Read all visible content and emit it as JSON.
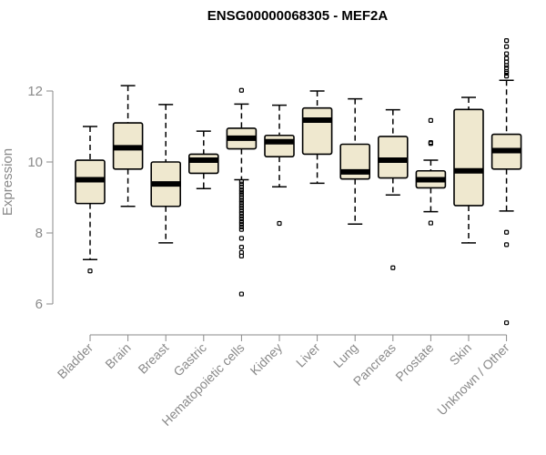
{
  "chart_data": {
    "type": "boxplot",
    "title": "ENSG00000068305 - MEF2A",
    "xlabel": "",
    "ylabel": "Expression",
    "ylim": [
      5.3,
      13.6
    ],
    "yticks": [
      6,
      8,
      10,
      12
    ],
    "box_fill": "#efe8cf",
    "grid": false,
    "legend": "none",
    "categories": [
      "Bladder",
      "Brain",
      "Breast",
      "Gastric",
      "Hematopoietic cells",
      "Kidney",
      "Liver",
      "Lung",
      "Pancreas",
      "Prostate",
      "Skin",
      "Unknown / Other"
    ],
    "boxes": [
      {
        "low": 7.25,
        "q1": 8.83,
        "median": 9.5,
        "q3": 10.05,
        "high": 11.0,
        "outliers": [
          6.93
        ]
      },
      {
        "low": 8.75,
        "q1": 9.8,
        "median": 10.4,
        "q3": 11.1,
        "high": 12.15,
        "outliers": []
      },
      {
        "low": 7.72,
        "q1": 8.75,
        "median": 9.38,
        "q3": 10.0,
        "high": 11.62,
        "outliers": []
      },
      {
        "low": 9.25,
        "q1": 9.68,
        "median": 10.05,
        "q3": 10.22,
        "high": 10.87,
        "outliers": []
      },
      {
        "low": 9.5,
        "q1": 10.37,
        "median": 10.67,
        "q3": 10.95,
        "high": 11.63,
        "outliers": [
          12.02,
          9.45,
          9.38,
          9.3,
          9.22,
          9.15,
          9.08,
          9.0,
          8.92,
          8.85,
          8.77,
          8.7,
          8.62,
          8.55,
          8.47,
          8.4,
          8.32,
          8.25,
          8.17,
          8.1,
          7.85,
          7.6,
          7.45,
          7.35,
          6.28
        ]
      },
      {
        "low": 9.3,
        "q1": 10.15,
        "median": 10.57,
        "q3": 10.75,
        "high": 11.6,
        "outliers": [
          8.27
        ]
      },
      {
        "low": 9.4,
        "q1": 10.22,
        "median": 11.18,
        "q3": 11.52,
        "high": 12.0,
        "outliers": []
      },
      {
        "low": 8.25,
        "q1": 9.52,
        "median": 9.72,
        "q3": 10.5,
        "high": 11.78,
        "outliers": []
      },
      {
        "low": 9.07,
        "q1": 9.55,
        "median": 10.05,
        "q3": 10.72,
        "high": 11.47,
        "outliers": [
          7.02
        ]
      },
      {
        "low": 8.6,
        "q1": 9.27,
        "median": 9.5,
        "q3": 9.75,
        "high": 10.05,
        "outliers": [
          11.17,
          10.55,
          10.52,
          8.28
        ]
      },
      {
        "low": 7.72,
        "q1": 8.77,
        "median": 9.75,
        "q3": 11.48,
        "high": 11.82,
        "outliers": []
      },
      {
        "low": 8.62,
        "q1": 9.8,
        "median": 10.32,
        "q3": 10.78,
        "high": 12.3,
        "outliers": [
          13.42,
          13.25,
          13.05,
          12.92,
          12.82,
          12.72,
          12.65,
          12.55,
          12.5,
          12.42,
          8.02,
          7.67,
          5.47
        ]
      }
    ]
  }
}
